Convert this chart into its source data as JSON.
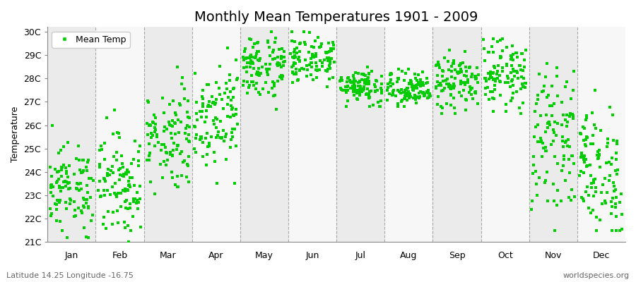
{
  "title": "Monthly Mean Temperatures 1901 - 2009",
  "ylabel": "Temperature",
  "footer_left": "Latitude 14.25 Longitude -16.75",
  "footer_right": "worldspecies.org",
  "legend_label": "Mean Temp",
  "marker_color": "#00CC00",
  "marker": "s",
  "marker_size": 3,
  "ytick_labels": [
    "21C",
    "22C",
    "23C",
    "24C",
    "25C",
    "26C",
    "27C",
    "28C",
    "29C",
    "30C"
  ],
  "ytick_values": [
    21,
    22,
    23,
    24,
    25,
    26,
    27,
    28,
    29,
    30
  ],
  "ylim": [
    21,
    30.2
  ],
  "months": [
    "Jan",
    "Feb",
    "Mar",
    "Apr",
    "May",
    "Jun",
    "Jul",
    "Aug",
    "Sep",
    "Oct",
    "Nov",
    "Dec"
  ],
  "month_means": [
    23.3,
    23.5,
    25.5,
    26.5,
    28.5,
    28.8,
    27.7,
    27.5,
    27.8,
    28.2,
    25.5,
    24.0
  ],
  "month_stds": [
    0.9,
    1.1,
    1.1,
    1.1,
    0.7,
    0.5,
    0.4,
    0.4,
    0.6,
    0.7,
    1.4,
    1.4
  ],
  "month_mins": [
    21.2,
    21.0,
    21.0,
    23.5,
    26.5,
    27.2,
    26.8,
    26.8,
    26.5,
    26.5,
    21.5,
    21.5
  ],
  "month_maxs": [
    26.0,
    27.3,
    28.5,
    29.3,
    30.0,
    30.0,
    29.0,
    28.5,
    29.3,
    29.7,
    29.5,
    27.5
  ],
  "n_years": 109,
  "band_colors": [
    "#ebebeb",
    "#f7f7f7"
  ],
  "grid_color": "#888888",
  "title_fontsize": 14,
  "axis_fontsize": 9,
  "tick_fontsize": 9,
  "footer_fontsize": 8
}
